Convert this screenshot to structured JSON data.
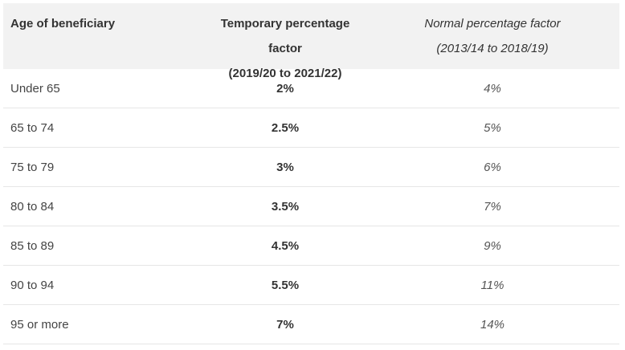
{
  "table": {
    "headers": {
      "age": "Age of beneficiary",
      "temporary_line1": "Temporary percentage factor",
      "temporary_line2": "(2019/20 to 2021/22)",
      "normal_line1": "Normal percentage factor",
      "normal_line2": "(2013/14 to 2018/19)"
    },
    "rows": [
      {
        "age": "Under 65",
        "temporary": "2%",
        "normal": "4%"
      },
      {
        "age": "65 to 74",
        "temporary": "2.5%",
        "normal": "5%"
      },
      {
        "age": "75 to 79",
        "temporary": "3%",
        "normal": "6%"
      },
      {
        "age": "80 to 84",
        "temporary": "3.5%",
        "normal": "7%"
      },
      {
        "age": "85 to 89",
        "temporary": "4.5%",
        "normal": "9%"
      },
      {
        "age": "90 to 94",
        "temporary": "5.5%",
        "normal": "11%"
      },
      {
        "age": "95 or more",
        "temporary": "7%",
        "normal": "14%"
      }
    ]
  }
}
